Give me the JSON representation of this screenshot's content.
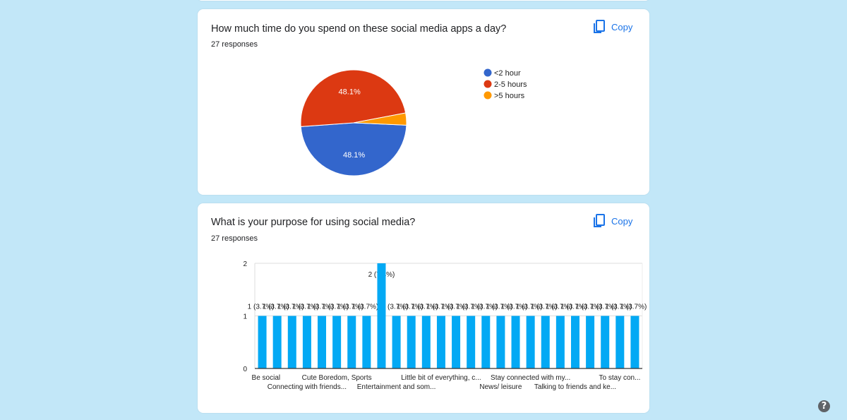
{
  "questions": [
    {
      "title": "How much time do you spend on these social media apps a day?",
      "responses": "27 responses",
      "copy_label": "Copy"
    },
    {
      "title": "What is your purpose for using social media?",
      "responses": "27 responses",
      "copy_label": "Copy"
    }
  ],
  "help_label": "?",
  "colors": {
    "blue": "#3366cc",
    "red": "#dc3912",
    "orange": "#ff9900",
    "bar": "#03a9f4",
    "accent": "#1a73e8"
  },
  "chart_data": [
    {
      "type": "pie",
      "slices": [
        {
          "label": "<2 hour",
          "value": 48.1,
          "display": "48.1%",
          "color": "#3366cc"
        },
        {
          "label": "2-5 hours",
          "value": 48.1,
          "display": "48.1%",
          "color": "#dc3912"
        },
        {
          "label": ">5 hours",
          "value": 3.7,
          "display": "",
          "color": "#ff9900"
        }
      ],
      "legend": "right"
    },
    {
      "type": "bar",
      "ylim": [
        0,
        2
      ],
      "yticks": [
        "0",
        "1",
        "2"
      ],
      "values": [
        1,
        1,
        1,
        1,
        1,
        1,
        1,
        1,
        2,
        1,
        1,
        1,
        1,
        1,
        1,
        1,
        1,
        1,
        1,
        1,
        1,
        1,
        1,
        1,
        1,
        1
      ],
      "bar_labels": [
        "1 (3.7%)",
        "1 (3.7%)",
        "1 (3.7%)",
        "1 (3.7%)",
        "1 (3.7%)",
        "1 (3.7%)",
        "1 (3.7%)",
        "1 (3.7%)",
        "2 (7.4%)",
        "1 (3.7%)",
        "1 (3.7%)",
        "1 (3.7%)",
        "1 (3.7%)",
        "1 (3.7%)",
        "1 (3.7%)",
        "1 (3.7%)",
        "1 (3.7%)",
        "1 (3.7%)",
        "1 (3.7%)",
        "1 (3.7%)",
        "1 (3.7%)",
        "1 (3.7%)",
        "1 (3.7%)",
        "1 (3.7%)",
        "1 (3.7%)",
        "1 (3.7%)"
      ],
      "category_labels": [
        {
          "index": 0,
          "row": 0,
          "text": "Be social"
        },
        {
          "index": 5,
          "row": 0,
          "text": "Cute Boredom, Sports"
        },
        {
          "index": 12,
          "row": 0,
          "text": "Little bit of everything, c..."
        },
        {
          "index": 18,
          "row": 0,
          "text": "Stay connected with my..."
        },
        {
          "index": 25,
          "row": 0,
          "text": "To stay con..."
        },
        {
          "index": 3,
          "row": 1,
          "text": "Connecting with friends..."
        },
        {
          "index": 9,
          "row": 1,
          "text": "Entertainment and som..."
        },
        {
          "index": 16,
          "row": 1,
          "text": "News/ leisure"
        },
        {
          "index": 21,
          "row": 1,
          "text": "Talking to friends and ke..."
        }
      ],
      "grid": true
    }
  ]
}
